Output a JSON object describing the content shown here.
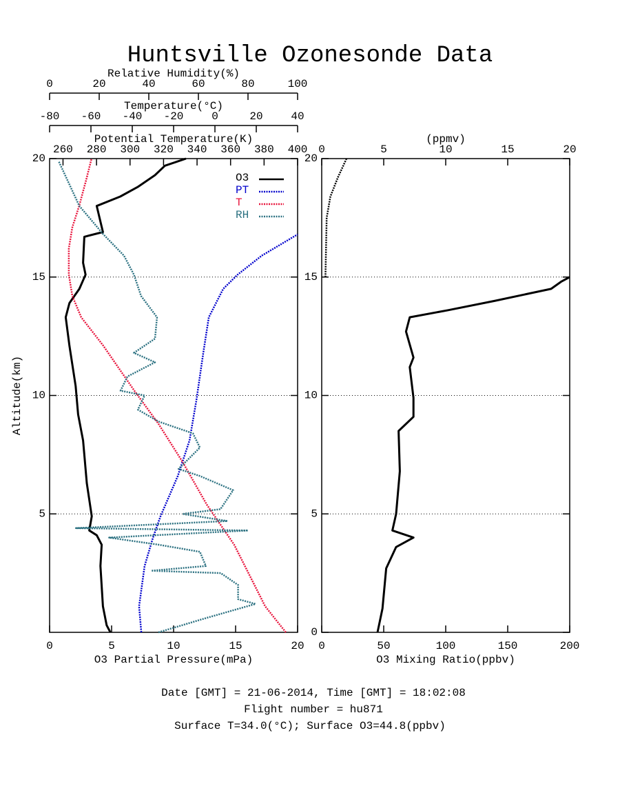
{
  "title": "Huntsville Ozonesonde Data",
  "footer": [
    "Date [GMT] = 21-06-2014,  Time [GMT] = 18:02:08",
    "Flight number = hu871",
    "Surface T=34.0(°C); Surface O3=44.8(ppbv)"
  ],
  "chart_data": [
    {
      "type": "line",
      "ylabel": "Altitude(km)",
      "ylim": [
        0,
        20
      ],
      "yticks": [
        5,
        10,
        15,
        20
      ],
      "grid": true,
      "legend": "upper right",
      "x_axes": [
        {
          "label": "O3 Partial Pressure(mPa)",
          "xlim": [
            0,
            20
          ],
          "xticks": [
            0,
            5,
            10,
            15,
            20
          ]
        },
        {
          "label": "Relative Humidity(%)",
          "xlim": [
            0,
            100
          ],
          "xticks": [
            0,
            20,
            40,
            60,
            80,
            100
          ]
        },
        {
          "label": "Temperature(°C)",
          "xlim": [
            -80,
            40
          ],
          "xticks": [
            -80,
            -60,
            -40,
            -20,
            0,
            20,
            40
          ]
        },
        {
          "label": "Potential Temperature(K)",
          "xlim": [
            252,
            400
          ],
          "xticks": [
            260,
            280,
            300,
            320,
            340,
            360,
            380,
            400
          ]
        }
      ],
      "series": [
        {
          "name": "O3",
          "color": "#000000",
          "axis": 0,
          "line_style": "solid",
          "x": [
            4.9,
            4.6,
            4.3,
            4.1,
            4.2,
            3.8,
            3.2,
            3.4,
            3.0,
            2.7,
            2.3,
            2.1,
            1.6,
            1.3,
            1.6,
            2.4,
            2.9,
            2.7,
            2.8,
            4.3,
            3.8,
            5.7,
            7.1,
            8.5,
            9.3,
            11.0
          ],
          "y": [
            0,
            0.3,
            1.1,
            2.8,
            3.7,
            4.1,
            4.3,
            4.9,
            6.3,
            8.1,
            9.2,
            10.4,
            12.1,
            13.3,
            13.9,
            14.5,
            15.1,
            15.6,
            16.7,
            16.9,
            18.0,
            18.4,
            18.8,
            19.3,
            19.7,
            20.0
          ]
        },
        {
          "name": "PT",
          "color": "#0000cc",
          "axis": 3,
          "line_style": "dotted",
          "x": [
            306.7,
            305.4,
            308.7,
            313.7,
            318.2,
            328.5,
            335.5,
            339.6,
            343.7,
            347.0,
            355.6,
            364.2,
            378.6,
            400
          ],
          "y": [
            0,
            1.1,
            2.8,
            4.0,
            4.9,
            6.6,
            8.1,
            9.8,
            11.8,
            13.3,
            14.5,
            15.1,
            15.9,
            16.8
          ]
        },
        {
          "name": "T",
          "color": "#e8143c",
          "axis": 2,
          "line_style": "dotted",
          "x": [
            34.3,
            24.3,
            9.3,
            -4.0,
            -15.7,
            -27.3,
            -39.0,
            -54.0,
            -64.7,
            -69.0,
            -70.7,
            -70.7,
            -69.0,
            -65.7,
            -62.3,
            -59.7
          ],
          "y": [
            0,
            1.1,
            3.7,
            5.4,
            7.2,
            8.8,
            10.2,
            12.1,
            13.3,
            14.2,
            15.1,
            16.2,
            17.1,
            18.0,
            19.1,
            20.0
          ]
        },
        {
          "name": "RH",
          "color": "#2a7080",
          "axis": 1,
          "line_style": "dotted",
          "x": [
            43.9,
            63,
            83,
            76,
            76,
            69,
            41,
            63,
            60.6,
            43.9,
            24,
            80,
            10.6,
            71.7,
            53.6,
            68.9,
            74,
            60.6,
            52,
            60.6,
            57.8,
            43.9,
            35.6,
            38.3,
            28.6,
            31.4,
            42.5,
            34,
            42.5,
            43.3,
            36.9,
            34,
            30,
            21.7,
            12,
            3.6
          ],
          "y": [
            0,
            0.6,
            1.2,
            1.4,
            2.0,
            2.5,
            2.6,
            2.8,
            3.4,
            3.7,
            4.0,
            4.3,
            4.4,
            4.7,
            5.0,
            5.2,
            6.0,
            6.6,
            6.9,
            7.8,
            8.4,
            8.9,
            9.4,
            10.0,
            10.2,
            10.8,
            11.4,
            11.8,
            12.4,
            13.3,
            14.2,
            15.1,
            15.9,
            16.8,
            18.0,
            19.9
          ]
        }
      ]
    },
    {
      "type": "line",
      "ylim": [
        0,
        20
      ],
      "yticks": [
        0,
        5,
        10,
        15,
        20
      ],
      "grid": true,
      "x_axes": [
        {
          "label": "O3 Mixing Ratio(ppbv)",
          "xlim": [
            0,
            200
          ],
          "xticks": [
            0,
            50,
            100,
            150,
            200
          ]
        },
        {
          "label": "(ppmv)",
          "xlim": [
            0,
            20
          ],
          "xticks": [
            0,
            5,
            10,
            15,
            20
          ]
        }
      ],
      "series": [
        {
          "color": "#000000",
          "axis": 0,
          "line_style": "solid",
          "x": [
            45,
            49,
            52,
            60,
            74,
            57,
            60,
            63,
            62,
            74,
            74,
            71,
            74,
            68,
            71,
            102,
            140,
            185,
            193,
            200
          ],
          "y": [
            0,
            1,
            2.7,
            3.6,
            4.0,
            4.3,
            5.0,
            6.8,
            8.5,
            9.1,
            9.9,
            11.2,
            11.6,
            12.7,
            13.3,
            13.6,
            14.0,
            14.5,
            14.8,
            15.0
          ]
        },
        {
          "color": "#000000",
          "axis": 1,
          "line_style": "dotted",
          "x": [
            0.3,
            0.4,
            0.7,
            1.3,
            2.0
          ],
          "y": [
            15,
            17.5,
            18.4,
            19.2,
            20
          ]
        }
      ]
    }
  ]
}
